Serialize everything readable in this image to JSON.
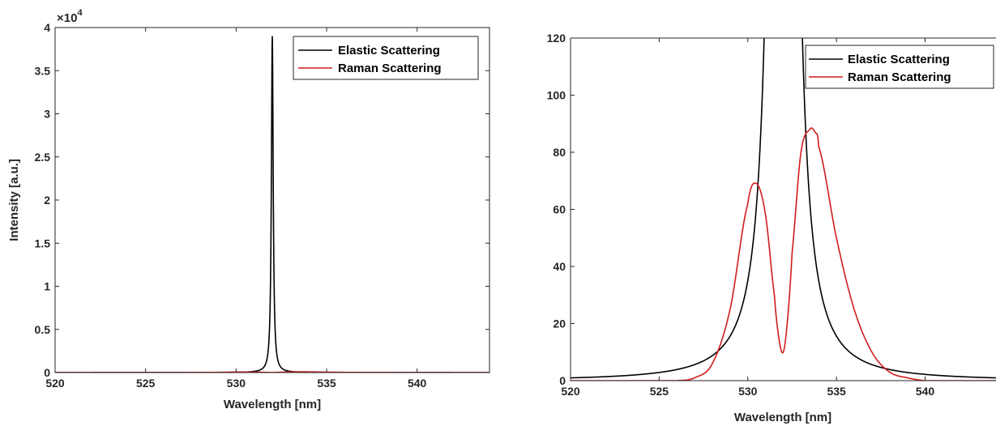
{
  "chart_data": [
    {
      "type": "line",
      "xlabel": "Wavelength [nm]",
      "ylabel": "Intensity [a.u.]",
      "xlim": [
        520,
        544
      ],
      "ylim": [
        0,
        40000
      ],
      "xticks": [
        520,
        525,
        530,
        535,
        540
      ],
      "yticks": [
        0,
        5000,
        10000,
        15000,
        20000,
        25000,
        30000,
        35000,
        40000
      ],
      "ytick_labels": [
        "0",
        "0.5",
        "1",
        "1.5",
        "2",
        "2.5",
        "3",
        "3.5",
        "4"
      ],
      "y_multiplier": {
        "base": "×10",
        "exp": "4"
      },
      "legend": "top-right",
      "series": [
        {
          "name": "Elastic Scattering",
          "color": "#000000",
          "model": "lorentz",
          "center": 532,
          "peak": 39000,
          "hwhm": 0.06
        },
        {
          "name": "Raman Scattering",
          "color": "#d01c1c",
          "model": "raman",
          "x": [
            520,
            526,
            527,
            528,
            529,
            530,
            530.5,
            531,
            531.5,
            531.75,
            532,
            532.25,
            532.5,
            533,
            533.5,
            533.8,
            534,
            535,
            536,
            537,
            538,
            539,
            540,
            544
          ],
          "y": [
            0,
            0,
            1,
            6,
            25,
            62,
            69,
            58,
            30,
            15,
            10,
            22,
            45,
            80,
            88,
            87,
            82,
            50,
            25,
            10,
            3,
            1,
            0,
            0
          ]
        }
      ]
    },
    {
      "type": "line",
      "xlabel": "Wavelength [nm]",
      "ylabel": "",
      "xlim": [
        520,
        544
      ],
      "ylim": [
        0,
        120
      ],
      "xticks": [
        520,
        525,
        530,
        535,
        540
      ],
      "yticks": [
        0,
        20,
        40,
        60,
        80,
        100,
        120
      ],
      "ytick_labels": [
        "0",
        "20",
        "40",
        "60",
        "80",
        "100",
        "120"
      ],
      "legend": "top-right",
      "series": [
        {
          "name": "Elastic Scattering",
          "color": "#000000",
          "model": "lorentz",
          "center": 532,
          "peak": 39000,
          "hwhm": 0.06
        },
        {
          "name": "Raman Scattering",
          "color": "#d01c1c",
          "model": "raman",
          "x": [
            520,
            526,
            527,
            528,
            529,
            530,
            530.5,
            531,
            531.5,
            531.75,
            532,
            532.25,
            532.5,
            533,
            533.5,
            533.8,
            534,
            535,
            536,
            537,
            538,
            539,
            540,
            544
          ],
          "y": [
            0,
            0,
            1,
            6,
            25,
            62,
            69,
            58,
            30,
            15,
            10,
            22,
            45,
            80,
            88,
            87,
            82,
            50,
            25,
            10,
            3,
            1,
            0,
            0
          ]
        }
      ]
    }
  ]
}
